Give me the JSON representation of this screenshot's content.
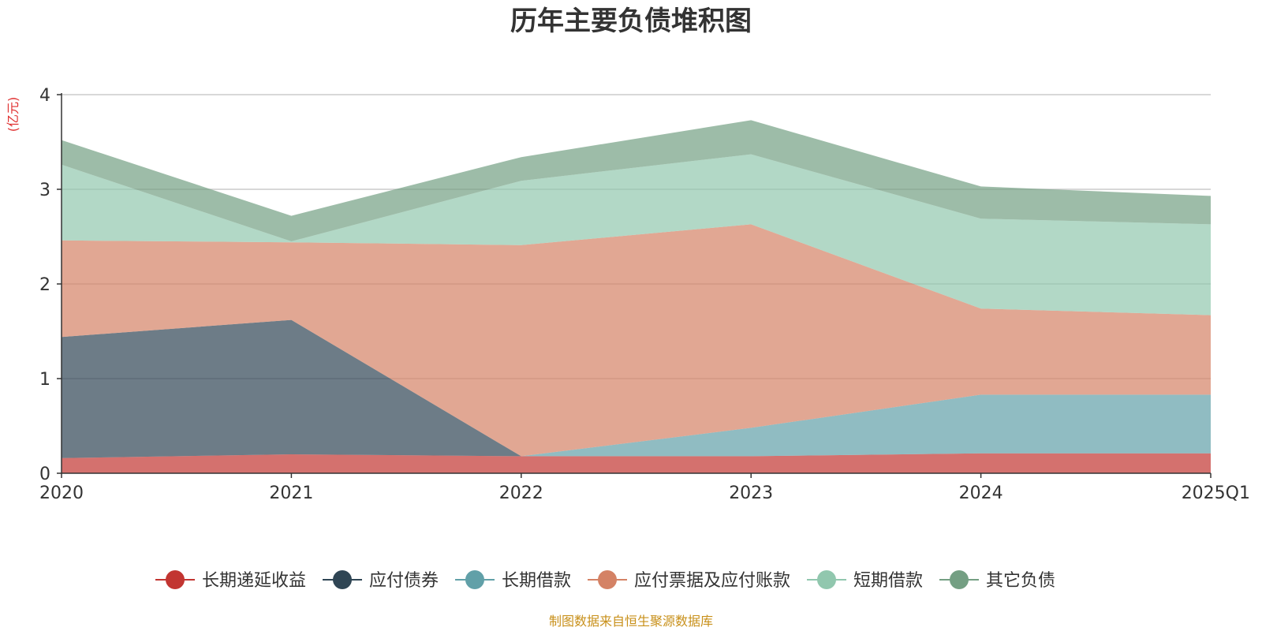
{
  "chart_data": {
    "type": "area",
    "stacked": true,
    "title": "历年主要负债堆积图",
    "y_unit": "(亿元)",
    "x": [
      "2020",
      "2021",
      "2022",
      "2023",
      "2024",
      "2025Q1"
    ],
    "ylim": [
      0,
      4
    ],
    "y_ticks": [
      "0",
      "1",
      "2",
      "3",
      "4"
    ],
    "grid": true,
    "legend_position": "bottom",
    "series": [
      {
        "name": "长期递延收益",
        "color": "#c23531",
        "values": [
          0.16,
          0.2,
          0.18,
          0.18,
          0.21,
          0.21
        ]
      },
      {
        "name": "应付债券",
        "color": "#2f4554",
        "values": [
          1.28,
          1.42,
          0.0,
          0.0,
          0.0,
          0.0
        ]
      },
      {
        "name": "长期借款",
        "color": "#61a0a8",
        "values": [
          0.0,
          0.0,
          0.0,
          0.3,
          0.62,
          0.62
        ]
      },
      {
        "name": "应付票据及应付账款",
        "color": "#d48265",
        "values": [
          1.02,
          0.82,
          2.23,
          2.15,
          0.91,
          0.84
        ]
      },
      {
        "name": "短期借款",
        "color": "#91c7ae",
        "values": [
          0.8,
          0.01,
          0.68,
          0.74,
          0.95,
          0.96
        ]
      },
      {
        "name": "其它负债",
        "color": "#749f83",
        "values": [
          0.26,
          0.27,
          0.25,
          0.36,
          0.34,
          0.3
        ]
      }
    ],
    "source": "制图数据来自恒生聚源数据库",
    "unit_color": "#e03030",
    "source_color": "#c8901a"
  }
}
